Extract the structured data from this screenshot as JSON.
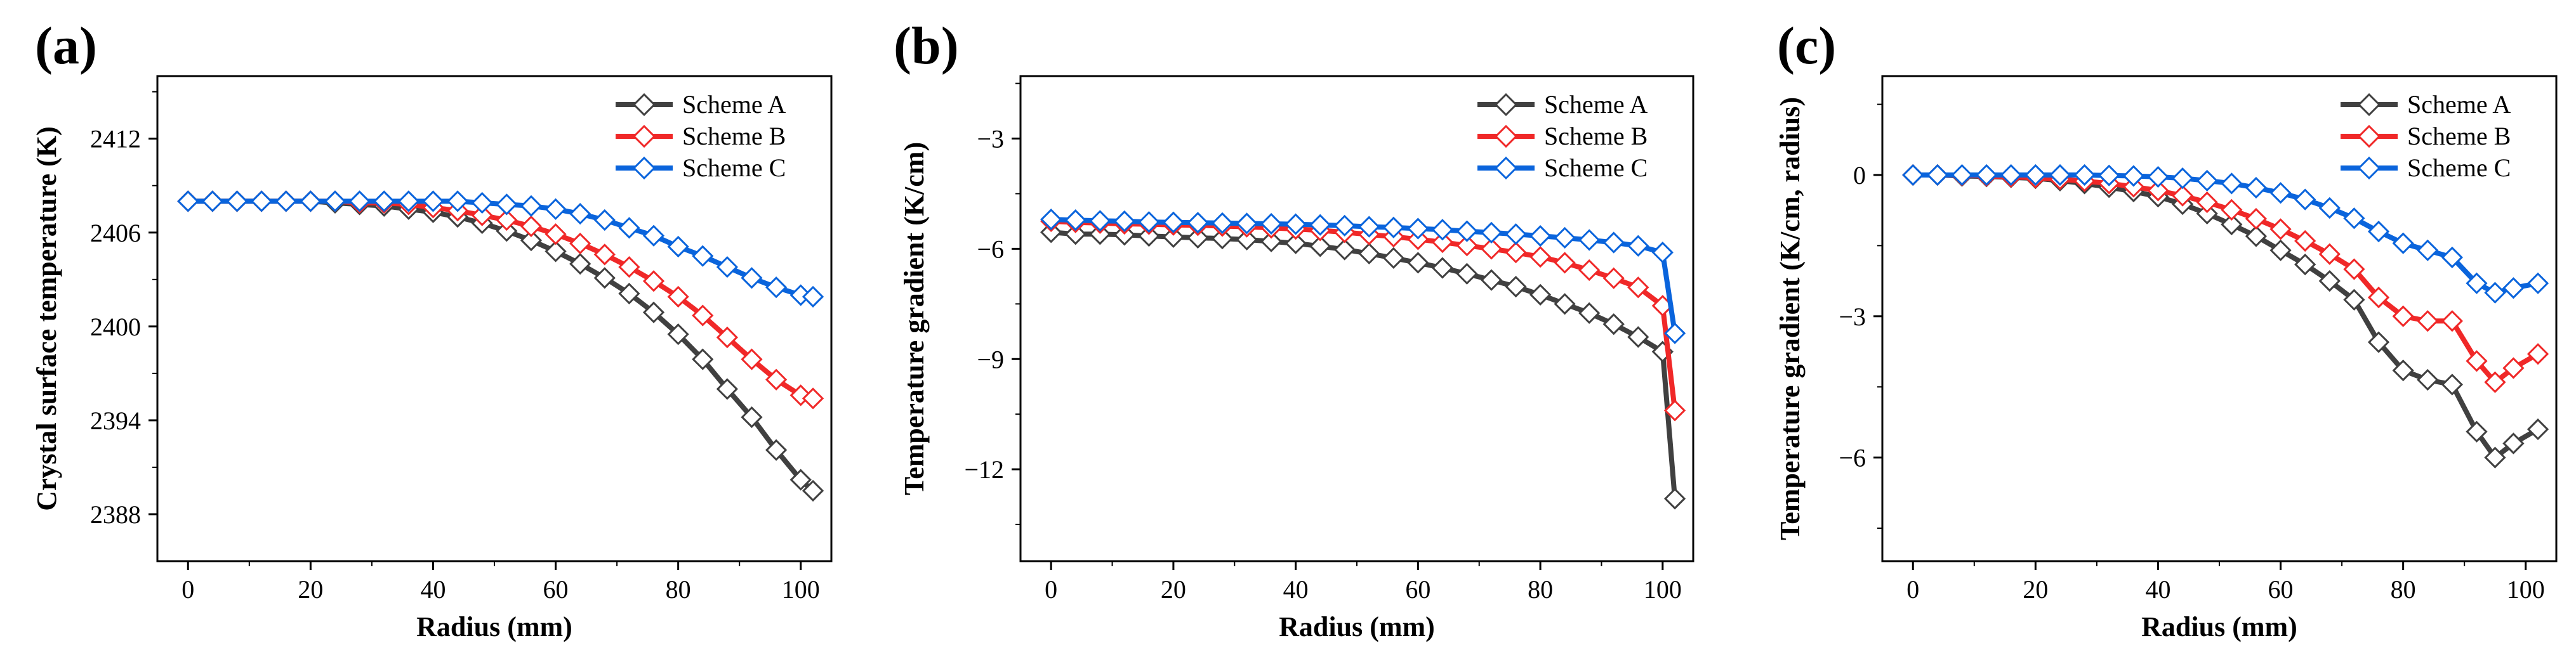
{
  "colors": {
    "scheme_a": "#404040",
    "scheme_b": "#f02828",
    "scheme_c": "#0a64dc"
  },
  "chart_data": [
    {
      "type": "line",
      "panel_label": "(a)",
      "xlabel": "Radius (mm)",
      "ylabel": "Crystal surface temperature  (K)",
      "xlim": [
        -5,
        105
      ],
      "ylim": [
        2385,
        2416
      ],
      "xticks": [
        0,
        20,
        40,
        60,
        80,
        100
      ],
      "yticks": [
        2388,
        2394,
        2400,
        2406,
        2412
      ],
      "legend": "top-right",
      "x": [
        0,
        4,
        8,
        12,
        16,
        20,
        24,
        28,
        32,
        36,
        40,
        44,
        48,
        52,
        56,
        60,
        64,
        68,
        72,
        76,
        80,
        84,
        88,
        92,
        96,
        100,
        102
      ],
      "series": [
        {
          "name": "Scheme A",
          "values": [
            2408,
            2408,
            2408,
            2408,
            2408,
            2408,
            2407.9,
            2407.8,
            2407.7,
            2407.5,
            2407.3,
            2407,
            2406.6,
            2406.1,
            2405.5,
            2404.8,
            2404,
            2403.1,
            2402.1,
            2400.9,
            2399.5,
            2397.9,
            2396,
            2394.2,
            2392.1,
            2390.2,
            2389.5
          ]
        },
        {
          "name": "Scheme B",
          "values": [
            2408,
            2408,
            2408,
            2408,
            2408,
            2408,
            2408,
            2407.9,
            2407.9,
            2407.8,
            2407.6,
            2407.4,
            2407.1,
            2406.8,
            2406.4,
            2405.9,
            2405.3,
            2404.6,
            2403.8,
            2402.9,
            2401.9,
            2400.7,
            2399.3,
            2397.9,
            2396.6,
            2395.6,
            2395.4
          ]
        },
        {
          "name": "Scheme C",
          "values": [
            2408,
            2408,
            2408,
            2408,
            2408,
            2408,
            2408,
            2408,
            2408,
            2408,
            2408,
            2408,
            2407.9,
            2407.8,
            2407.7,
            2407.5,
            2407.2,
            2406.8,
            2406.3,
            2405.8,
            2405.1,
            2404.5,
            2403.8,
            2403.1,
            2402.5,
            2402,
            2401.9
          ]
        }
      ]
    },
    {
      "type": "line",
      "panel_label": "(b)",
      "xlabel": "Radius (mm)",
      "ylabel": "Temperature gradient (K/cm)",
      "xlim": [
        -5,
        105
      ],
      "ylim": [
        -14.5,
        -1.3
      ],
      "xticks": [
        0,
        20,
        40,
        60,
        80,
        100
      ],
      "yticks": [
        -12,
        -9,
        -6,
        -3
      ],
      "legend": "top-right",
      "x": [
        0,
        4,
        8,
        12,
        16,
        20,
        24,
        28,
        32,
        36,
        40,
        44,
        48,
        52,
        56,
        60,
        64,
        68,
        72,
        76,
        80,
        84,
        88,
        92,
        96,
        100,
        102
      ],
      "series": [
        {
          "name": "Scheme A",
          "values": [
            -5.55,
            -5.6,
            -5.6,
            -5.62,
            -5.65,
            -5.68,
            -5.7,
            -5.72,
            -5.75,
            -5.8,
            -5.85,
            -5.93,
            -6.02,
            -6.13,
            -6.25,
            -6.38,
            -6.52,
            -6.68,
            -6.85,
            -7.03,
            -7.25,
            -7.5,
            -7.75,
            -8.05,
            -8.4,
            -8.8,
            -12.8
          ]
        },
        {
          "name": "Scheme B",
          "values": [
            -5.25,
            -5.28,
            -5.3,
            -5.32,
            -5.33,
            -5.35,
            -5.36,
            -5.38,
            -5.4,
            -5.43,
            -5.46,
            -5.5,
            -5.55,
            -5.61,
            -5.67,
            -5.74,
            -5.82,
            -5.91,
            -6.0,
            -6.1,
            -6.22,
            -6.38,
            -6.58,
            -6.8,
            -7.05,
            -7.55,
            -10.4
          ]
        },
        {
          "name": "Scheme C",
          "values": [
            -5.2,
            -5.22,
            -5.24,
            -5.25,
            -5.27,
            -5.28,
            -5.29,
            -5.3,
            -5.31,
            -5.32,
            -5.33,
            -5.35,
            -5.37,
            -5.4,
            -5.42,
            -5.45,
            -5.48,
            -5.52,
            -5.56,
            -5.6,
            -5.65,
            -5.7,
            -5.76,
            -5.83,
            -5.92,
            -6.1,
            -8.3
          ]
        }
      ]
    },
    {
      "type": "line",
      "panel_label": "(c)",
      "xlabel": "Radius (mm)",
      "ylabel": "Temperature gradient (K/cm, radius)",
      "xlim": [
        -5,
        105
      ],
      "ylim": [
        -8.2,
        2.1
      ],
      "xticks": [
        0,
        20,
        40,
        60,
        80,
        100
      ],
      "yticks": [
        -6,
        -3,
        0
      ],
      "legend": "top-right",
      "x": [
        0,
        4,
        8,
        12,
        16,
        20,
        24,
        28,
        32,
        36,
        40,
        44,
        48,
        52,
        56,
        60,
        64,
        68,
        72,
        76,
        80,
        84,
        88,
        92,
        95,
        98,
        102
      ],
      "series": [
        {
          "name": "Scheme A",
          "values": [
            0,
            0,
            -0.02,
            -0.03,
            -0.05,
            -0.07,
            -0.12,
            -0.18,
            -0.26,
            -0.35,
            -0.46,
            -0.62,
            -0.82,
            -1.05,
            -1.3,
            -1.6,
            -1.9,
            -2.25,
            -2.65,
            -3.55,
            -4.15,
            -4.35,
            -4.45,
            -5.45,
            -6.0,
            -5.7,
            -5.4
          ]
        },
        {
          "name": "Scheme B",
          "values": [
            0,
            0,
            -0.01,
            -0.02,
            -0.04,
            -0.06,
            -0.09,
            -0.13,
            -0.18,
            -0.25,
            -0.33,
            -0.44,
            -0.58,
            -0.74,
            -0.93,
            -1.15,
            -1.4,
            -1.68,
            -2.0,
            -2.6,
            -3.0,
            -3.1,
            -3.1,
            -3.95,
            -4.4,
            -4.1,
            -3.8
          ]
        },
        {
          "name": "Scheme C",
          "values": [
            0,
            0,
            0,
            0,
            0,
            0,
            0,
            0,
            -0.01,
            -0.02,
            -0.04,
            -0.07,
            -0.12,
            -0.18,
            -0.27,
            -0.38,
            -0.52,
            -0.7,
            -0.92,
            -1.2,
            -1.45,
            -1.6,
            -1.75,
            -2.3,
            -2.5,
            -2.4,
            -2.3
          ]
        }
      ]
    }
  ]
}
